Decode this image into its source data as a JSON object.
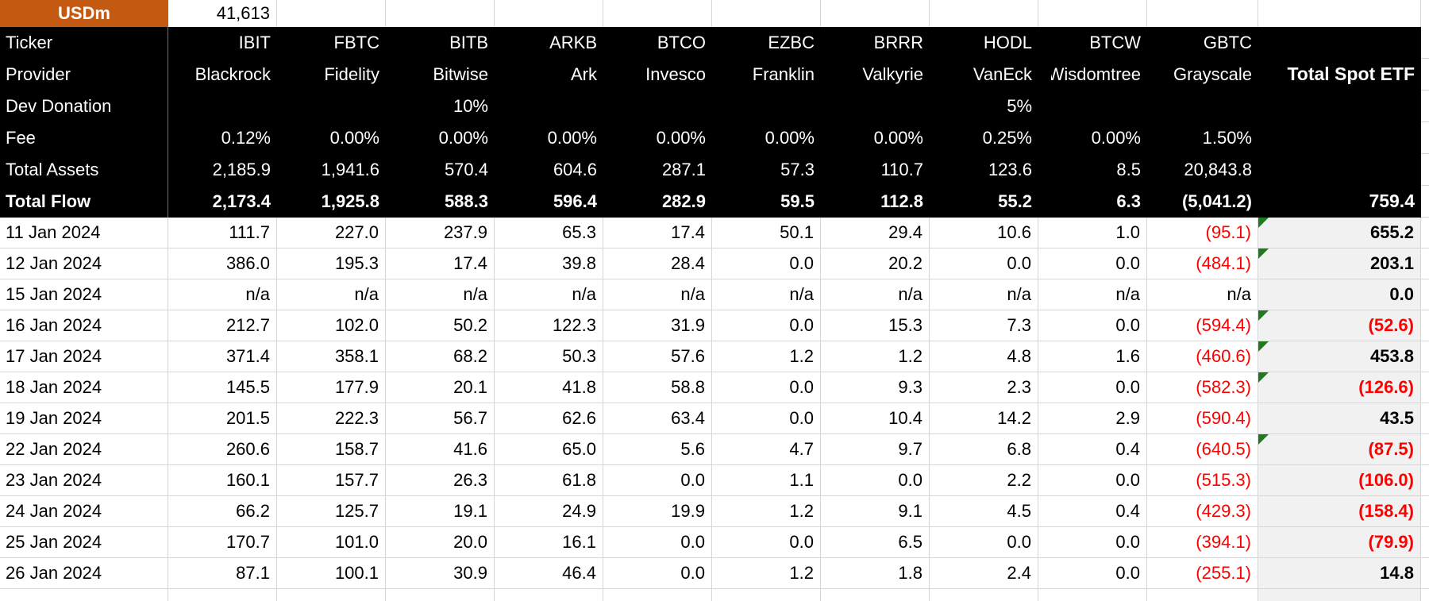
{
  "unit": {
    "label": "USDm",
    "value": "41,613"
  },
  "row_labels": [
    "Ticker",
    "Provider",
    "Dev Donation",
    "Fee",
    "Total Assets",
    "Total Flow"
  ],
  "total_column": {
    "header": "Total Spot ETF",
    "total_flow": "759.4"
  },
  "colors": {
    "accent_orange": "#C45911",
    "header_bg": "#000000",
    "negative_red": "#FF0000",
    "marker_green": "#1F7A1F",
    "total_col_bg": "#F1F1F1",
    "gridline": "#D6D6D6"
  },
  "columns": [
    {
      "ticker": "IBIT",
      "provider": "Blackrock",
      "dev_donation": "",
      "fee": "0.12%",
      "total_assets": "2,185.9",
      "total_flow": "2,173.4"
    },
    {
      "ticker": "FBTC",
      "provider": "Fidelity",
      "dev_donation": "",
      "fee": "0.00%",
      "total_assets": "1,941.6",
      "total_flow": "1,925.8"
    },
    {
      "ticker": "BITB",
      "provider": "Bitwise",
      "dev_donation": "10%",
      "fee": "0.00%",
      "total_assets": "570.4",
      "total_flow": "588.3"
    },
    {
      "ticker": "ARKB",
      "provider": "Ark",
      "dev_donation": "",
      "fee": "0.00%",
      "total_assets": "604.6",
      "total_flow": "596.4"
    },
    {
      "ticker": "BTCO",
      "provider": "Invesco",
      "dev_donation": "",
      "fee": "0.00%",
      "total_assets": "287.1",
      "total_flow": "282.9"
    },
    {
      "ticker": "EZBC",
      "provider": "Franklin",
      "dev_donation": "",
      "fee": "0.00%",
      "total_assets": "57.3",
      "total_flow": "59.5"
    },
    {
      "ticker": "BRRR",
      "provider": "Valkyrie",
      "dev_donation": "",
      "fee": "0.00%",
      "total_assets": "110.7",
      "total_flow": "112.8"
    },
    {
      "ticker": "HODL",
      "provider": "VanEck",
      "dev_donation": "5%",
      "fee": "0.25%",
      "total_assets": "123.6",
      "total_flow": "55.2"
    },
    {
      "ticker": "BTCW",
      "provider": "Wisdomtree",
      "dev_donation": "",
      "fee": "0.00%",
      "total_assets": "8.5",
      "total_flow": "6.3",
      "provider_clipped": true
    },
    {
      "ticker": "GBTC",
      "provider": "Grayscale",
      "dev_donation": "",
      "fee": "1.50%",
      "total_assets": "20,843.8",
      "total_flow": "(5,041.2)",
      "flow_negative": true
    }
  ],
  "rows": [
    {
      "date": "11 Jan 2024",
      "values": [
        "111.7",
        "227.0",
        "237.9",
        "65.3",
        "17.4",
        "50.1",
        "29.4",
        "10.6",
        "1.0",
        "(95.1)"
      ],
      "total": "655.2",
      "marker": true
    },
    {
      "date": "12 Jan 2024",
      "values": [
        "386.0",
        "195.3",
        "17.4",
        "39.8",
        "28.4",
        "0.0",
        "20.2",
        "0.0",
        "0.0",
        "(484.1)"
      ],
      "total": "203.1",
      "marker": true
    },
    {
      "date": "15 Jan 2024",
      "values": [
        "n/a",
        "n/a",
        "n/a",
        "n/a",
        "n/a",
        "n/a",
        "n/a",
        "n/a",
        "n/a",
        "n/a"
      ],
      "total": "0.0",
      "marker": false
    },
    {
      "date": "16 Jan 2024",
      "values": [
        "212.7",
        "102.0",
        "50.2",
        "122.3",
        "31.9",
        "0.0",
        "15.3",
        "7.3",
        "0.0",
        "(594.4)"
      ],
      "total": "(52.6)",
      "marker": true
    },
    {
      "date": "17 Jan 2024",
      "values": [
        "371.4",
        "358.1",
        "68.2",
        "50.3",
        "57.6",
        "1.2",
        "1.2",
        "4.8",
        "1.6",
        "(460.6)"
      ],
      "total": "453.8",
      "marker": true
    },
    {
      "date": "18 Jan 2024",
      "values": [
        "145.5",
        "177.9",
        "20.1",
        "41.8",
        "58.8",
        "0.0",
        "9.3",
        "2.3",
        "0.0",
        "(582.3)"
      ],
      "total": "(126.6)",
      "marker": true
    },
    {
      "date": "19 Jan 2024",
      "values": [
        "201.5",
        "222.3",
        "56.7",
        "62.6",
        "63.4",
        "0.0",
        "10.4",
        "14.2",
        "2.9",
        "(590.4)"
      ],
      "total": "43.5",
      "marker": false
    },
    {
      "date": "22 Jan 2024",
      "values": [
        "260.6",
        "158.7",
        "41.6",
        "65.0",
        "5.6",
        "4.7",
        "9.7",
        "6.8",
        "0.4",
        "(640.5)"
      ],
      "total": "(87.5)",
      "marker": true
    },
    {
      "date": "23 Jan 2024",
      "values": [
        "160.1",
        "157.7",
        "26.3",
        "61.8",
        "0.0",
        "1.1",
        "0.0",
        "2.2",
        "0.0",
        "(515.3)"
      ],
      "total": "(106.0)",
      "marker": false
    },
    {
      "date": "24 Jan 2024",
      "values": [
        "66.2",
        "125.7",
        "19.1",
        "24.9",
        "19.9",
        "1.2",
        "9.1",
        "4.5",
        "0.4",
        "(429.3)"
      ],
      "total": "(158.4)",
      "marker": false
    },
    {
      "date": "25 Jan 2024",
      "values": [
        "170.7",
        "101.0",
        "20.0",
        "16.1",
        "0.0",
        "0.0",
        "6.5",
        "0.0",
        "0.0",
        "(394.1)"
      ],
      "total": "(79.9)",
      "marker": false
    },
    {
      "date": "26 Jan 2024",
      "values": [
        "87.1",
        "100.1",
        "30.9",
        "46.4",
        "0.0",
        "1.2",
        "1.8",
        "2.4",
        "0.0",
        "(255.1)"
      ],
      "total": "14.8",
      "marker": false
    }
  ]
}
